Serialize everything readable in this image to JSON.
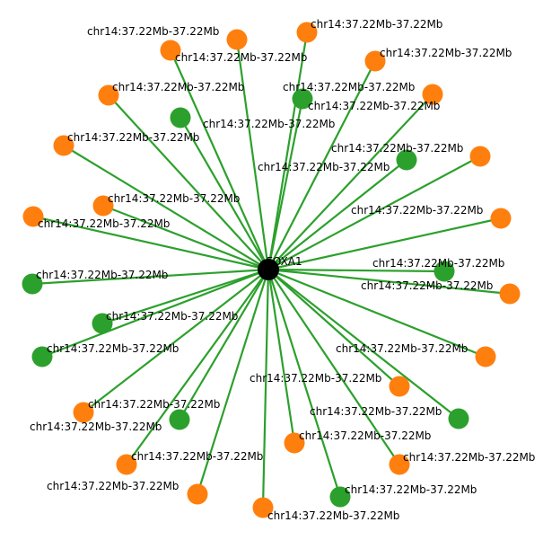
{
  "graph": {
    "center_label": "FOXA1",
    "center_color": "#000000",
    "edge_color": "#2ca02c",
    "node_colors": {
      "orange": "#ff7f0e",
      "green": "#2ca02c"
    },
    "nodes": [
      {
        "label": "chr14:37.22Mb-37.22Mb",
        "color": "orange"
      },
      {
        "label": "chr14:37.22Mb-37.22Mb",
        "color": "orange"
      },
      {
        "label": "chr14:37.22Mb-37.22Mb",
        "color": "orange"
      },
      {
        "label": "chr14:37.22Mb-37.22Mb",
        "color": "orange"
      },
      {
        "label": "chr14:37.22Mb-37.22Mb",
        "color": "orange"
      },
      {
        "label": "chr14:37.22Mb-37.22Mb",
        "color": "green"
      },
      {
        "label": "chr14:37.22Mb-37.22Mb",
        "color": "orange"
      },
      {
        "label": "chr14:37.22Mb-37.22Mb",
        "color": "green"
      },
      {
        "label": "chr14:37.22Mb-37.22Mb",
        "color": "orange"
      },
      {
        "label": "chr14:37.22Mb-37.22Mb",
        "color": "green"
      },
      {
        "label": "chr14:37.22Mb-37.22Mb",
        "color": "orange"
      },
      {
        "label": "chr14:37.22Mb-37.22Mb",
        "color": "orange"
      },
      {
        "label": "chr14:37.22Mb-37.22Mb",
        "color": "orange"
      },
      {
        "label": "chr14:37.22Mb-37.22Mb",
        "color": "orange"
      },
      {
        "label": "chr14:37.22Mb-37.22Mb",
        "color": "green"
      },
      {
        "label": "chr14:37.22Mb-37.22Mb",
        "color": "orange"
      },
      {
        "label": "chr14:37.22Mb-37.22Mb",
        "color": "green"
      },
      {
        "label": "chr14:37.22Mb-37.22Mb",
        "color": "green"
      },
      {
        "label": "chr14:37.22Mb-37.22Mb",
        "color": "green"
      },
      {
        "label": "chr14:37.22Mb-37.22Mb",
        "color": "orange"
      },
      {
        "label": "chr14:37.22Mb-37.22Mb",
        "color": "orange"
      },
      {
        "label": "chr14:37.22Mb-37.22Mb",
        "color": "green"
      },
      {
        "label": "chr14:37.22Mb-37.22Mb",
        "color": "orange"
      },
      {
        "label": "chr14:37.22Mb-37.22Mb",
        "color": "orange"
      },
      {
        "label": "chr14:37.22Mb-37.22Mb",
        "color": "green"
      },
      {
        "label": "chr14:37.22Mb-37.22Mb",
        "color": "orange"
      },
      {
        "label": "chr14:37.22Mb-37.22Mb",
        "color": "green"
      },
      {
        "label": "chr14:37.22Mb-37.22Mb",
        "color": "orange"
      },
      {
        "label": "chr14:37.22Mb-37.22Mb",
        "color": "orange"
      },
      {
        "label": "chr14:37.22Mb-37.22Mb",
        "color": "orange"
      },
      {
        "label": "chr14:37.22Mb-37.22Mb",
        "color": "orange"
      },
      {
        "label": "chr14:37.22Mb-37.22Mb",
        "color": "green"
      }
    ]
  }
}
